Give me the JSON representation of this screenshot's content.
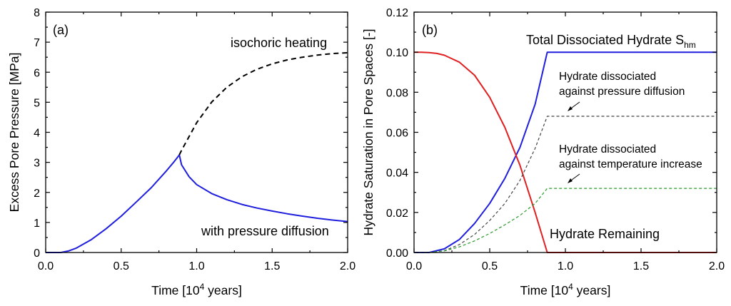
{
  "chart_data": [
    {
      "type": "line",
      "panel_label": "(a)",
      "xlabel_prefix": "Time [10",
      "xlabel_exp": "4",
      "xlabel_suffix": " years]",
      "ylabel": "Excess Pore Pressure [MPa]",
      "xlim": [
        0,
        2
      ],
      "ylim": [
        0,
        8
      ],
      "xticks": [
        "0.0",
        "0.5",
        "1.0",
        "1.5",
        "2.0"
      ],
      "yticks": [
        "0",
        "1",
        "2",
        "3",
        "4",
        "5",
        "6",
        "7",
        "8"
      ],
      "annotations": {
        "isochoric": "isochoric heating",
        "diffusion": "with pressure diffusion"
      },
      "series": [
        {
          "name": "with pressure diffusion",
          "color": "#1f1fdd",
          "style": "solid",
          "x": [
            0,
            0.1,
            0.15,
            0.2,
            0.3,
            0.4,
            0.5,
            0.6,
            0.7,
            0.8,
            0.85,
            0.875,
            0.885,
            0.9,
            0.95,
            1.0,
            1.1,
            1.2,
            1.3,
            1.4,
            1.5,
            1.6,
            1.7,
            1.8,
            1.9,
            2.0
          ],
          "y": [
            0,
            0,
            0.05,
            0.14,
            0.42,
            0.79,
            1.21,
            1.68,
            2.16,
            2.72,
            3.02,
            3.18,
            3.25,
            2.92,
            2.52,
            2.26,
            1.96,
            1.76,
            1.6,
            1.48,
            1.38,
            1.29,
            1.21,
            1.14,
            1.08,
            1.03
          ]
        },
        {
          "name": "isochoric heating",
          "color": "#000000",
          "style": "dashed",
          "x": [
            0.885,
            0.9,
            1.0,
            1.1,
            1.2,
            1.3,
            1.4,
            1.5,
            1.6,
            1.7,
            1.8,
            1.9,
            2.0
          ],
          "y": [
            3.25,
            3.4,
            4.32,
            5.01,
            5.5,
            5.85,
            6.1,
            6.28,
            6.41,
            6.5,
            6.57,
            6.62,
            6.65
          ]
        }
      ]
    },
    {
      "type": "line",
      "panel_label": "(b)",
      "xlabel_prefix": "Time [10",
      "xlabel_exp": "4",
      "xlabel_suffix": " years]",
      "ylabel": "Hydrate Saturation in Pore Spaces [-]",
      "xlim": [
        0,
        2
      ],
      "ylim": [
        0,
        0.12
      ],
      "xticks": [
        "0.0",
        "0.5",
        "1.0",
        "1.5",
        "2.0"
      ],
      "yticks": [
        "0.00",
        "0.02",
        "0.04",
        "0.06",
        "0.08",
        "0.10",
        "0.12"
      ],
      "annotations": {
        "total": "Total Dissociated Hydrate S",
        "total_sub": "hm",
        "pressure_1": "Hydrate dissociated",
        "pressure_2": "against pressure diffusion",
        "temperature_1": "Hydrate dissociated",
        "temperature_2": "against temperature increase",
        "remaining": "Hydrate Remaining"
      },
      "series": [
        {
          "name": "Total Dissociated Hydrate S_hm",
          "color": "#1f1fdd",
          "style": "solid",
          "x": [
            0,
            0.1,
            0.2,
            0.3,
            0.4,
            0.5,
            0.6,
            0.7,
            0.8,
            0.88,
            1.0,
            1.5,
            2.0
          ],
          "y": [
            0,
            0,
            0.0018,
            0.0065,
            0.0145,
            0.0245,
            0.037,
            0.0525,
            0.074,
            0.1,
            0.1,
            0.1,
            0.1
          ]
        },
        {
          "name": "Hydrate Remaining",
          "color": "#e02020",
          "style": "solid",
          "x": [
            0,
            0.05,
            0.1,
            0.15,
            0.2,
            0.3,
            0.4,
            0.5,
            0.6,
            0.7,
            0.8,
            0.88,
            1.0,
            1.5,
            2.0
          ],
          "y": [
            0.1,
            0.1,
            0.0998,
            0.0994,
            0.0985,
            0.095,
            0.0885,
            0.0775,
            0.0625,
            0.0435,
            0.02,
            0.0,
            0.0,
            0.0,
            0.0
          ]
        },
        {
          "name": "Hydrate dissociated against pressure diffusion",
          "color": "#444444",
          "style": "dashed",
          "x": [
            0,
            0.1,
            0.2,
            0.3,
            0.4,
            0.5,
            0.6,
            0.7,
            0.8,
            0.88,
            1.0,
            1.5,
            2.0
          ],
          "y": [
            0,
            0,
            0.0009,
            0.004,
            0.009,
            0.016,
            0.0245,
            0.036,
            0.052,
            0.068,
            0.068,
            0.068,
            0.068
          ]
        },
        {
          "name": "Hydrate dissociated against temperature increase",
          "color": "#2a9a2a",
          "style": "dashed",
          "x": [
            0,
            0.1,
            0.2,
            0.3,
            0.4,
            0.5,
            0.6,
            0.7,
            0.8,
            0.88,
            1.0,
            1.5,
            2.0
          ],
          "y": [
            0,
            0,
            0.0008,
            0.0028,
            0.0058,
            0.0095,
            0.0138,
            0.0185,
            0.0245,
            0.032,
            0.032,
            0.032,
            0.032
          ]
        }
      ]
    }
  ]
}
